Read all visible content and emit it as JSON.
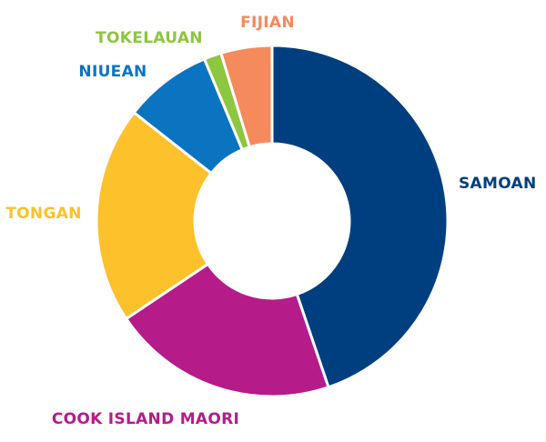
{
  "chart_data": {
    "type": "pie",
    "title": "",
    "categories": [
      "SAMOAN",
      "COOK ISLAND MAORI",
      "TONGAN",
      "NIUEAN",
      "TOKELAUAN",
      "FIJIAN"
    ],
    "values": [
      44.8,
      20.8,
      20.0,
      8.1,
      1.6,
      4.7
    ],
    "colors": [
      "#003f7f",
      "#b61b8a",
      "#fcc12b",
      "#0a74c1",
      "#8dc63f",
      "#f58a5d"
    ],
    "donut": true,
    "legend": "none"
  }
}
